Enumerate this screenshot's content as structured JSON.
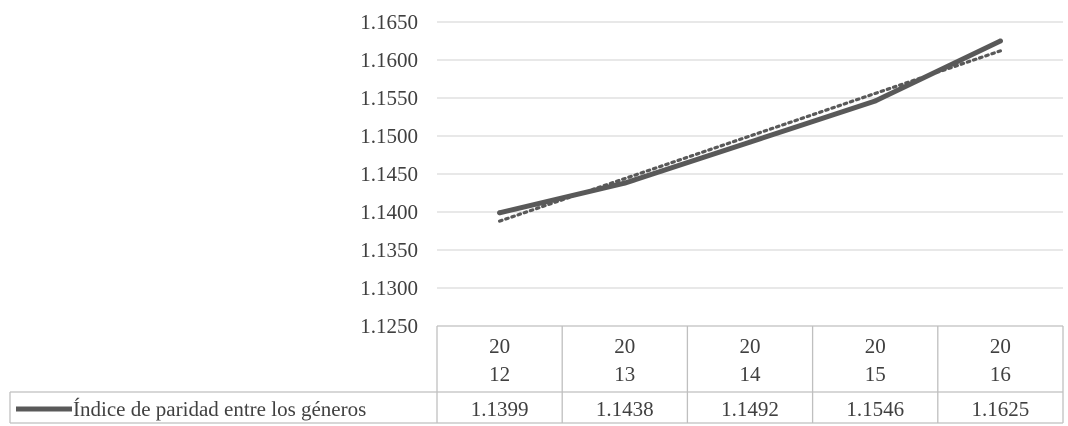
{
  "chart_data": {
    "type": "line",
    "categories": [
      [
        "20",
        "12"
      ],
      [
        "20",
        "13"
      ],
      [
        "20",
        "14"
      ],
      [
        "20",
        "15"
      ],
      [
        "20",
        "16"
      ]
    ],
    "series": [
      {
        "name": "Índice de paridad entre los géneros",
        "values": [
          1.1399,
          1.1438,
          1.1492,
          1.1546,
          1.1625
        ],
        "value_labels": [
          "1.1399",
          "1.1438",
          "1.1492",
          "1.1546",
          "1.1625"
        ],
        "color": "#595959"
      }
    ],
    "trendline": {
      "style": "dotted",
      "type": "linear",
      "color": "#595959"
    },
    "y_ticks": [
      "1.1250",
      "1.1300",
      "1.1350",
      "1.1400",
      "1.1450",
      "1.1500",
      "1.1550",
      "1.1600",
      "1.1650"
    ],
    "ylim": [
      1.125,
      1.165
    ],
    "grid": true,
    "data_table": true,
    "title": "",
    "xlabel": "",
    "ylabel": ""
  }
}
